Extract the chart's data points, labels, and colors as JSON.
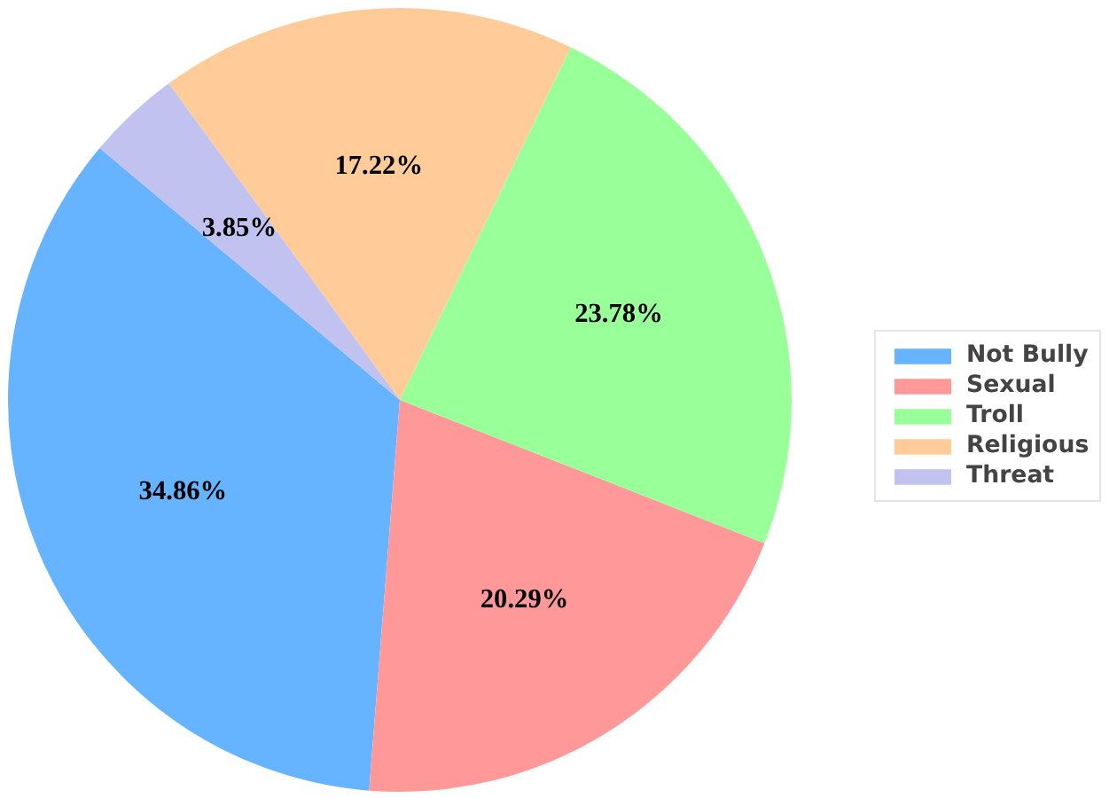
{
  "chart_data": {
    "type": "pie",
    "categories": [
      "Not Bully",
      "Sexual",
      "Troll",
      "Religious",
      "Threat"
    ],
    "values": [
      34.86,
      20.29,
      23.78,
      17.22,
      3.85
    ],
    "colors": [
      "#66b3ff",
      "#ff9999",
      "#99ff99",
      "#ffcc99",
      "#c2c2f0"
    ],
    "value_labels": [
      "34.86%",
      "20.29%",
      "23.78%",
      "17.22%",
      "3.85%"
    ],
    "legend": "right"
  }
}
